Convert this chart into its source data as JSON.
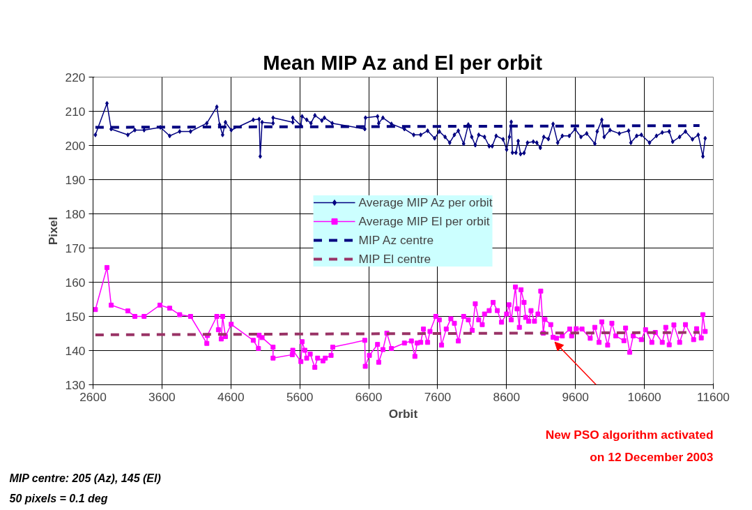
{
  "chart_data": {
    "type": "line",
    "title": "Mean MIP Az and El per orbit",
    "xlabel": "Orbit",
    "ylabel": "Pixel",
    "xlim": [
      2600,
      11600
    ],
    "xticks": [
      2600,
      3600,
      4600,
      5600,
      6600,
      7600,
      8600,
      9600,
      10600,
      11600
    ],
    "ylim": [
      130,
      220
    ],
    "yticks": [
      130,
      140,
      150,
      160,
      170,
      180,
      190,
      200,
      210,
      220
    ],
    "grid": true,
    "legend": "center",
    "series": [
      {
        "name": "Average MIP Az per orbit",
        "color": "#000080",
        "marker": "diamond",
        "line_style": "solid",
        "x": [
          2634,
          2802,
          2863,
          3105,
          3207,
          3341,
          3577,
          3712,
          3857,
          4015,
          4251,
          4396,
          4436,
          4480,
          4521,
          4605,
          4925,
          5010,
          5026,
          5053,
          5212,
          5212,
          5498,
          5498,
          5616,
          5633,
          5701,
          5762,
          5819,
          5920,
          5957,
          6071,
          6543,
          6553,
          6728,
          6745,
          6806,
          6930,
          7118,
          7253,
          7354,
          7455,
          7556,
          7624,
          7708,
          7775,
          7843,
          7900,
          7977,
          8045,
          8095,
          8146,
          8196,
          8280,
          8348,
          8392,
          8449,
          8550,
          8601,
          8641,
          8668,
          8685,
          8736,
          8769,
          8803,
          8854,
          8904,
          8988,
          9039,
          9090,
          9140,
          9207,
          9275,
          9342,
          9409,
          9510,
          9595,
          9679,
          9763,
          9881,
          9915,
          9982,
          10016,
          10101,
          10236,
          10371,
          10404,
          10488,
          10556,
          10674,
          10775,
          10859,
          10960,
          11010,
          11111,
          11196,
          11297,
          11381,
          11449,
          11482
        ],
        "values": [
          203.1,
          212.3,
          204.8,
          203.1,
          204.5,
          204.5,
          205.3,
          202.8,
          204.1,
          204.1,
          206.5,
          211.3,
          206.1,
          203.1,
          206.8,
          204.5,
          207.5,
          207.7,
          196.8,
          206.8,
          206.5,
          208.1,
          206.8,
          208.1,
          205.8,
          208.5,
          207.5,
          206.5,
          208.8,
          207.3,
          208.1,
          206.5,
          204.8,
          208.1,
          208.5,
          206.5,
          208.1,
          206.3,
          204.8,
          203.1,
          203.1,
          204.3,
          202.1,
          204.1,
          202.5,
          200.8,
          203.1,
          204.3,
          200.5,
          206.1,
          202.5,
          200.1,
          203.1,
          202.5,
          199.8,
          199.8,
          202.8,
          201.8,
          198.8,
          202.5,
          206.9,
          197.9,
          197.9,
          201.3,
          197.5,
          197.8,
          200.8,
          201.1,
          200.8,
          199.3,
          202.5,
          201.9,
          206.3,
          200.8,
          202.8,
          202.8,
          204.8,
          202.5,
          203.5,
          200.5,
          204.1,
          207.5,
          202.5,
          204.5,
          203.5,
          204.3,
          200.8,
          202.8,
          203.1,
          200.8,
          202.8,
          203.8,
          204.1,
          201.1,
          202.5,
          204.1,
          201.8,
          203.1,
          196.8,
          202.1
        ]
      },
      {
        "name": "Average MIP El per orbit",
        "color": "#ff00ff",
        "marker": "square",
        "line_style": "solid",
        "x": [
          2634,
          2802,
          2863,
          3105,
          3207,
          3341,
          3571,
          3712,
          3857,
          4015,
          4251,
          4258,
          4396,
          4419,
          4460,
          4480,
          4521,
          4605,
          4925,
          5000,
          5010,
          5053,
          5212,
          5212,
          5491,
          5498,
          5616,
          5633,
          5673,
          5700,
          5751,
          5818,
          5859,
          5936,
          5970,
          6054,
          6078,
          6543,
          6550,
          6610,
          6728,
          6745,
          6806,
          6863,
          6930,
          7118,
          7219,
          7270,
          7303,
          7354,
          7394,
          7455,
          7489,
          7573,
          7624,
          7657,
          7725,
          7792,
          7843,
          7900,
          7977,
          8045,
          8102,
          8146,
          8196,
          8247,
          8280,
          8348,
          8405,
          8466,
          8527,
          8601,
          8635,
          8668,
          8729,
          8753,
          8786,
          8810,
          8854,
          8877,
          8921,
          8955,
          9005,
          9056,
          9096,
          9133,
          9157,
          9241,
          9275,
          9325,
          9409,
          9517,
          9544,
          9611,
          9695,
          9814,
          9881,
          9942,
          9982,
          10067,
          10128,
          10185,
          10303,
          10327,
          10387,
          10438,
          10556,
          10617,
          10708,
          10758,
          10859,
          10910,
          10960,
          11028,
          11111,
          11196,
          11314,
          11358,
          11425,
          11449,
          11482
        ],
        "values": [
          152.0,
          164.3,
          153.3,
          151.6,
          150.0,
          150.0,
          153.3,
          152.4,
          150.5,
          150.0,
          142.1,
          144.4,
          150.0,
          146.1,
          143.4,
          150.0,
          144.1,
          147.7,
          143.0,
          140.6,
          144.5,
          143.8,
          141.0,
          137.8,
          138.8,
          140.1,
          136.8,
          142.6,
          140.1,
          137.8,
          139.0,
          135.1,
          137.8,
          137.0,
          137.8,
          138.6,
          141.0,
          143.0,
          135.4,
          138.6,
          141.8,
          136.6,
          140.3,
          145.1,
          140.6,
          142.2,
          142.8,
          138.3,
          142.2,
          142.4,
          146.3,
          142.4,
          145.6,
          150.0,
          149.0,
          141.6,
          146.3,
          149.3,
          148.0,
          142.8,
          150.0,
          149.0,
          145.9,
          153.7,
          149.0,
          147.6,
          150.7,
          151.7,
          154.1,
          151.7,
          148.3,
          150.7,
          153.4,
          149.0,
          158.6,
          152.2,
          146.8,
          157.8,
          154.1,
          149.7,
          148.6,
          151.7,
          148.6,
          150.7,
          157.4,
          145.1,
          149.1,
          147.6,
          143.9,
          143.6,
          144.3,
          146.3,
          144.3,
          146.4,
          146.3,
          143.6,
          146.8,
          142.4,
          148.4,
          141.6,
          148.0,
          144.3,
          142.9,
          146.6,
          139.5,
          144.3,
          143.2,
          146.1,
          142.4,
          145.3,
          142.4,
          146.8,
          141.7,
          147.5,
          142.4,
          147.6,
          143.2,
          146.4,
          143.7,
          150.5,
          145.6
        ]
      },
      {
        "name": "MIP Az centre",
        "color": "#000080",
        "marker": "none",
        "line_style": "dashed",
        "x": [
          2634,
          11400
        ],
        "values": [
          205.3,
          205.8
        ]
      },
      {
        "name": "MIP El centre",
        "color": "#993366",
        "marker": "none",
        "line_style": "dashed",
        "x": [
          2634,
          11400
        ],
        "values": [
          144.6,
          145.3
        ]
      }
    ],
    "annotations": [
      "MIP centre: 205 (Az), 145 (El)\n50 pixels = 0.1 deg",
      "New PSO algorithm activated\non 12 December 2003"
    ]
  }
}
